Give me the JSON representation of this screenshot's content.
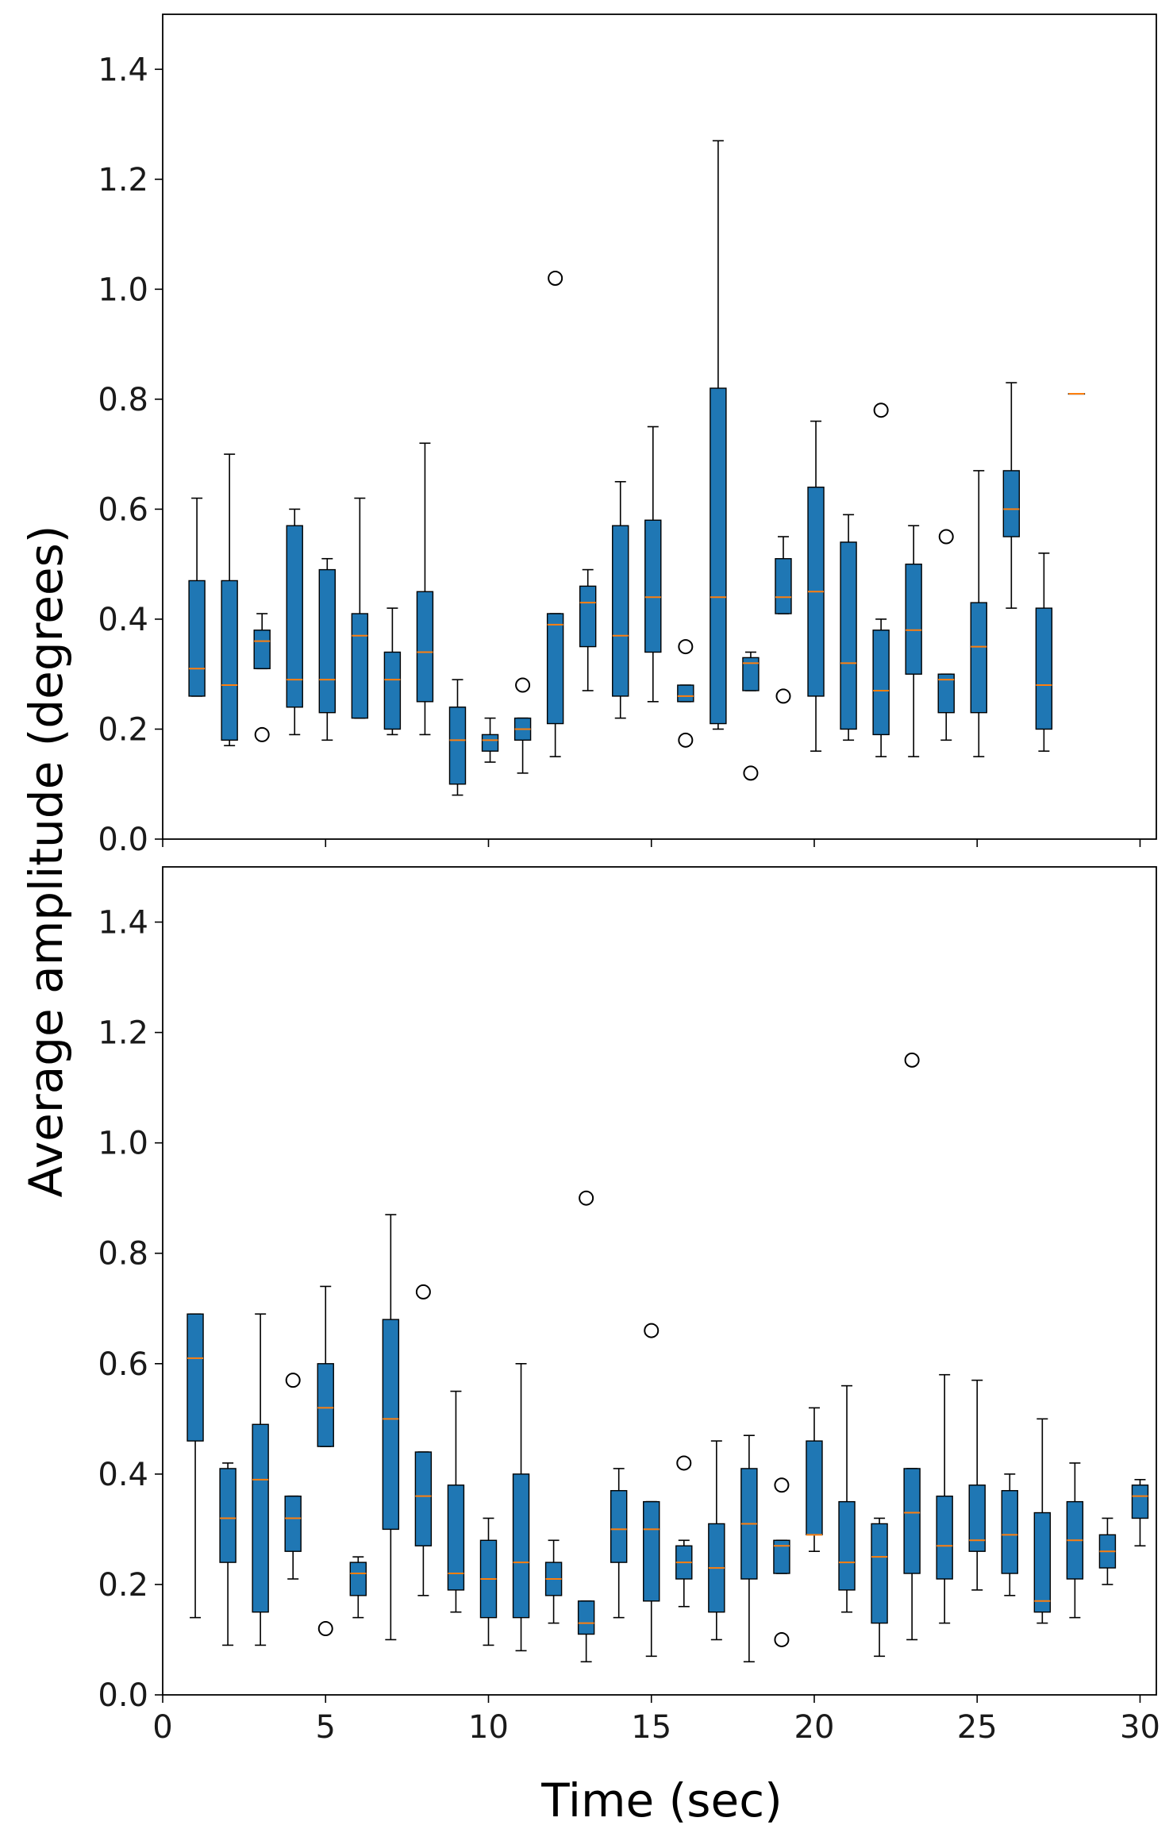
{
  "colors": {
    "box_fill": "#1f77b4",
    "median": "#ff7f0e",
    "line": "#000000",
    "outlier": "#000000"
  },
  "chart_data": [
    {
      "type": "box",
      "panel": "top",
      "xlabel": "",
      "ylabel": "Average amplitude (degrees)",
      "xlim": [
        0,
        30.5
      ],
      "ylim": [
        0,
        1.5
      ],
      "xticks": [
        0,
        5,
        10,
        15,
        20,
        25,
        30
      ],
      "yticks": [
        0.0,
        0.2,
        0.4,
        0.6,
        0.8,
        1.0,
        1.2,
        1.4
      ],
      "ytick_labels": [
        "0.0",
        "0.2",
        "0.4",
        "0.6",
        "0.8",
        "1.0",
        "1.2",
        "1.4"
      ],
      "boxes": [
        {
          "x": 1.05,
          "wlo": 0.26,
          "q1": 0.26,
          "med": 0.31,
          "q3": 0.47,
          "whi": 0.62,
          "outliers": []
        },
        {
          "x": 2.05,
          "wlo": 0.17,
          "q1": 0.18,
          "med": 0.28,
          "q3": 0.47,
          "whi": 0.7,
          "outliers": []
        },
        {
          "x": 3.05,
          "wlo": 0.31,
          "q1": 0.31,
          "med": 0.36,
          "q3": 0.38,
          "whi": 0.41,
          "outliers": [
            0.19
          ]
        },
        {
          "x": 4.05,
          "wlo": 0.19,
          "q1": 0.24,
          "med": 0.29,
          "q3": 0.57,
          "whi": 0.6,
          "outliers": []
        },
        {
          "x": 5.05,
          "wlo": 0.18,
          "q1": 0.23,
          "med": 0.29,
          "q3": 0.49,
          "whi": 0.51,
          "outliers": []
        },
        {
          "x": 6.05,
          "wlo": 0.22,
          "q1": 0.22,
          "med": 0.37,
          "q3": 0.41,
          "whi": 0.62,
          "outliers": []
        },
        {
          "x": 7.05,
          "wlo": 0.19,
          "q1": 0.2,
          "med": 0.29,
          "q3": 0.34,
          "whi": 0.42,
          "outliers": []
        },
        {
          "x": 8.05,
          "wlo": 0.19,
          "q1": 0.25,
          "med": 0.34,
          "q3": 0.45,
          "whi": 0.72,
          "outliers": []
        },
        {
          "x": 9.05,
          "wlo": 0.08,
          "q1": 0.1,
          "med": 0.18,
          "q3": 0.24,
          "whi": 0.29,
          "outliers": []
        },
        {
          "x": 10.05,
          "wlo": 0.14,
          "q1": 0.16,
          "med": 0.18,
          "q3": 0.19,
          "whi": 0.22,
          "outliers": []
        },
        {
          "x": 11.05,
          "wlo": 0.12,
          "q1": 0.18,
          "med": 0.2,
          "q3": 0.22,
          "whi": 0.22,
          "outliers": [
            0.28
          ]
        },
        {
          "x": 12.05,
          "wlo": 0.15,
          "q1": 0.21,
          "med": 0.39,
          "q3": 0.41,
          "whi": 0.41,
          "outliers": [
            1.02
          ]
        },
        {
          "x": 13.05,
          "wlo": 0.27,
          "q1": 0.35,
          "med": 0.43,
          "q3": 0.46,
          "whi": 0.49,
          "outliers": []
        },
        {
          "x": 14.05,
          "wlo": 0.22,
          "q1": 0.26,
          "med": 0.37,
          "q3": 0.57,
          "whi": 0.65,
          "outliers": []
        },
        {
          "x": 15.05,
          "wlo": 0.25,
          "q1": 0.34,
          "med": 0.44,
          "q3": 0.58,
          "whi": 0.75,
          "outliers": []
        },
        {
          "x": 16.05,
          "wlo": 0.25,
          "q1": 0.25,
          "med": 0.26,
          "q3": 0.28,
          "whi": 0.28,
          "outliers": [
            0.35,
            0.18
          ]
        },
        {
          "x": 17.05,
          "wlo": 0.2,
          "q1": 0.21,
          "med": 0.44,
          "q3": 0.82,
          "whi": 1.27,
          "outliers": []
        },
        {
          "x": 18.05,
          "wlo": 0.27,
          "q1": 0.27,
          "med": 0.32,
          "q3": 0.33,
          "whi": 0.34,
          "outliers": [
            0.12
          ]
        },
        {
          "x": 19.05,
          "wlo": 0.41,
          "q1": 0.41,
          "med": 0.44,
          "q3": 0.51,
          "whi": 0.55,
          "outliers": [
            0.26
          ]
        },
        {
          "x": 20.05,
          "wlo": 0.16,
          "q1": 0.26,
          "med": 0.45,
          "q3": 0.64,
          "whi": 0.76,
          "outliers": []
        },
        {
          "x": 21.05,
          "wlo": 0.18,
          "q1": 0.2,
          "med": 0.32,
          "q3": 0.54,
          "whi": 0.59,
          "outliers": []
        },
        {
          "x": 22.05,
          "wlo": 0.15,
          "q1": 0.19,
          "med": 0.27,
          "q3": 0.38,
          "whi": 0.4,
          "outliers": [
            0.78
          ]
        },
        {
          "x": 23.05,
          "wlo": 0.15,
          "q1": 0.3,
          "med": 0.38,
          "q3": 0.5,
          "whi": 0.57,
          "outliers": []
        },
        {
          "x": 24.05,
          "wlo": 0.18,
          "q1": 0.23,
          "med": 0.29,
          "q3": 0.3,
          "whi": 0.3,
          "outliers": [
            0.55
          ]
        },
        {
          "x": 25.05,
          "wlo": 0.15,
          "q1": 0.23,
          "med": 0.35,
          "q3": 0.43,
          "whi": 0.67,
          "outliers": []
        },
        {
          "x": 26.05,
          "wlo": 0.42,
          "q1": 0.55,
          "med": 0.6,
          "q3": 0.67,
          "whi": 0.83,
          "outliers": []
        },
        {
          "x": 27.05,
          "wlo": 0.16,
          "q1": 0.2,
          "med": 0.28,
          "q3": 0.42,
          "whi": 0.52,
          "outliers": []
        },
        {
          "x": 28.05,
          "wlo": 0.81,
          "q1": 0.81,
          "med": 0.81,
          "q3": 0.81,
          "whi": 0.81,
          "outliers": []
        }
      ]
    },
    {
      "type": "box",
      "panel": "bottom",
      "xlabel": "Time (sec)",
      "ylabel": "Average amplitude (degrees)",
      "xlim": [
        0,
        30.5
      ],
      "ylim": [
        0,
        1.5
      ],
      "xticks": [
        0,
        5,
        10,
        15,
        20,
        25,
        30
      ],
      "xtick_labels": [
        "0",
        "5",
        "10",
        "15",
        "20",
        "25",
        "30"
      ],
      "yticks": [
        0.0,
        0.2,
        0.4,
        0.6,
        0.8,
        1.0,
        1.2,
        1.4
      ],
      "ytick_labels": [
        "0.0",
        "0.2",
        "0.4",
        "0.6",
        "0.8",
        "1.0",
        "1.2",
        "1.4"
      ],
      "boxes": [
        {
          "x": 1,
          "wlo": 0.14,
          "q1": 0.46,
          "med": 0.61,
          "q3": 0.69,
          "whi": 0.69,
          "outliers": []
        },
        {
          "x": 2,
          "wlo": 0.09,
          "q1": 0.24,
          "med": 0.32,
          "q3": 0.41,
          "whi": 0.42,
          "outliers": []
        },
        {
          "x": 3,
          "wlo": 0.09,
          "q1": 0.15,
          "med": 0.39,
          "q3": 0.49,
          "whi": 0.69,
          "outliers": []
        },
        {
          "x": 4,
          "wlo": 0.21,
          "q1": 0.26,
          "med": 0.32,
          "q3": 0.36,
          "whi": 0.36,
          "outliers": [
            0.57
          ]
        },
        {
          "x": 5,
          "wlo": 0.45,
          "q1": 0.45,
          "med": 0.52,
          "q3": 0.6,
          "whi": 0.74,
          "outliers": [
            0.12
          ]
        },
        {
          "x": 6,
          "wlo": 0.14,
          "q1": 0.18,
          "med": 0.22,
          "q3": 0.24,
          "whi": 0.25,
          "outliers": []
        },
        {
          "x": 7,
          "wlo": 0.1,
          "q1": 0.3,
          "med": 0.5,
          "q3": 0.68,
          "whi": 0.87,
          "outliers": []
        },
        {
          "x": 8,
          "wlo": 0.18,
          "q1": 0.27,
          "med": 0.36,
          "q3": 0.44,
          "whi": 0.44,
          "outliers": [
            0.73
          ]
        },
        {
          "x": 9,
          "wlo": 0.15,
          "q1": 0.19,
          "med": 0.22,
          "q3": 0.38,
          "whi": 0.55,
          "outliers": []
        },
        {
          "x": 10,
          "wlo": 0.09,
          "q1": 0.14,
          "med": 0.21,
          "q3": 0.28,
          "whi": 0.32,
          "outliers": []
        },
        {
          "x": 11,
          "wlo": 0.08,
          "q1": 0.14,
          "med": 0.24,
          "q3": 0.4,
          "whi": 0.6,
          "outliers": []
        },
        {
          "x": 12,
          "wlo": 0.13,
          "q1": 0.18,
          "med": 0.21,
          "q3": 0.24,
          "whi": 0.28,
          "outliers": []
        },
        {
          "x": 13,
          "wlo": 0.06,
          "q1": 0.11,
          "med": 0.13,
          "q3": 0.17,
          "whi": 0.17,
          "outliers": [
            0.9
          ]
        },
        {
          "x": 14,
          "wlo": 0.14,
          "q1": 0.24,
          "med": 0.3,
          "q3": 0.37,
          "whi": 0.41,
          "outliers": []
        },
        {
          "x": 15,
          "wlo": 0.07,
          "q1": 0.17,
          "med": 0.3,
          "q3": 0.35,
          "whi": 0.35,
          "outliers": [
            0.66
          ]
        },
        {
          "x": 16,
          "wlo": 0.16,
          "q1": 0.21,
          "med": 0.24,
          "q3": 0.27,
          "whi": 0.28,
          "outliers": [
            0.42
          ]
        },
        {
          "x": 17,
          "wlo": 0.1,
          "q1": 0.15,
          "med": 0.23,
          "q3": 0.31,
          "whi": 0.46,
          "outliers": []
        },
        {
          "x": 18,
          "wlo": 0.06,
          "q1": 0.21,
          "med": 0.31,
          "q3": 0.41,
          "whi": 0.47,
          "outliers": []
        },
        {
          "x": 19,
          "wlo": 0.22,
          "q1": 0.22,
          "med": 0.27,
          "q3": 0.28,
          "whi": 0.28,
          "outliers": [
            0.38,
            0.1
          ]
        },
        {
          "x": 20,
          "wlo": 0.26,
          "q1": 0.29,
          "med": 0.29,
          "q3": 0.46,
          "whi": 0.52,
          "outliers": []
        },
        {
          "x": 21,
          "wlo": 0.15,
          "q1": 0.19,
          "med": 0.24,
          "q3": 0.35,
          "whi": 0.56,
          "outliers": []
        },
        {
          "x": 22,
          "wlo": 0.07,
          "q1": 0.13,
          "med": 0.25,
          "q3": 0.31,
          "whi": 0.32,
          "outliers": []
        },
        {
          "x": 23,
          "wlo": 0.1,
          "q1": 0.22,
          "med": 0.33,
          "q3": 0.41,
          "whi": 0.41,
          "outliers": [
            1.15
          ]
        },
        {
          "x": 24,
          "wlo": 0.13,
          "q1": 0.21,
          "med": 0.27,
          "q3": 0.36,
          "whi": 0.58,
          "outliers": []
        },
        {
          "x": 25,
          "wlo": 0.19,
          "q1": 0.26,
          "med": 0.28,
          "q3": 0.38,
          "whi": 0.57,
          "outliers": []
        },
        {
          "x": 26,
          "wlo": 0.18,
          "q1": 0.22,
          "med": 0.29,
          "q3": 0.37,
          "whi": 0.4,
          "outliers": []
        },
        {
          "x": 27,
          "wlo": 0.13,
          "q1": 0.15,
          "med": 0.17,
          "q3": 0.33,
          "whi": 0.5,
          "outliers": []
        },
        {
          "x": 28,
          "wlo": 0.14,
          "q1": 0.21,
          "med": 0.28,
          "q3": 0.35,
          "whi": 0.42,
          "outliers": []
        },
        {
          "x": 29,
          "wlo": 0.2,
          "q1": 0.23,
          "med": 0.26,
          "q3": 0.29,
          "whi": 0.32,
          "outliers": []
        },
        {
          "x": 30,
          "wlo": 0.27,
          "q1": 0.32,
          "med": 0.36,
          "q3": 0.38,
          "whi": 0.39,
          "outliers": []
        }
      ]
    }
  ]
}
